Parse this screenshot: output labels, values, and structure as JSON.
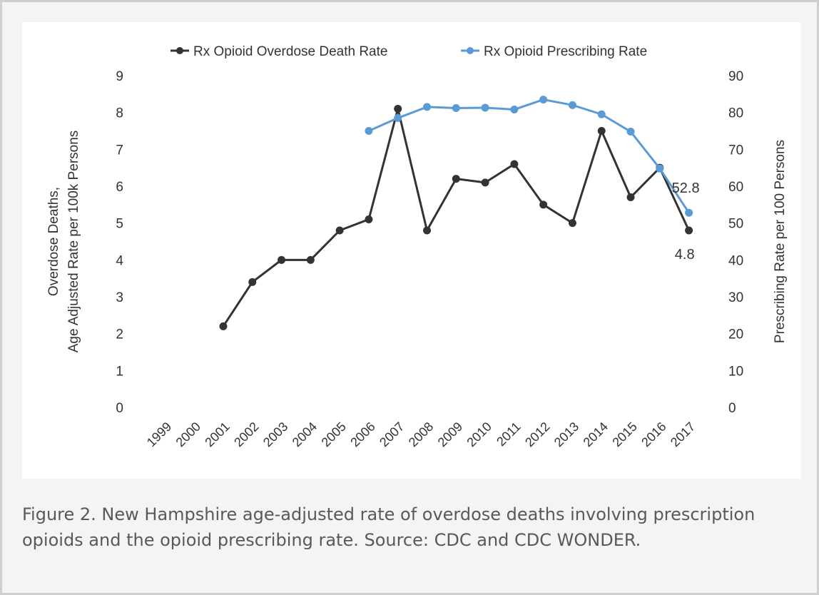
{
  "caption": "Figure 2. New Hampshire age-adjusted rate of overdose deaths involving prescription opioids and the opioid prescribing rate. Source: CDC and CDC WONDER.",
  "chart_data": {
    "type": "line",
    "categories": [
      "1999",
      "2000",
      "2001",
      "2002",
      "2003",
      "2004",
      "2005",
      "2006",
      "2007",
      "2008",
      "2009",
      "2010",
      "2011",
      "2012",
      "2013",
      "2014",
      "2015",
      "2016",
      "2017"
    ],
    "series": [
      {
        "name": "Rx Opioid Overdose Death Rate",
        "axis": "left",
        "color": "#333333",
        "values": [
          null,
          null,
          2.2,
          3.4,
          4.0,
          4.0,
          4.8,
          5.1,
          8.1,
          4.8,
          6.2,
          6.1,
          6.6,
          5.5,
          5.0,
          7.5,
          5.7,
          6.5,
          4.8
        ]
      },
      {
        "name": "Rx Opioid Prescribing Rate",
        "axis": "right",
        "color": "#5b9bd5",
        "values": [
          null,
          null,
          null,
          null,
          null,
          null,
          null,
          75,
          78.5,
          81.5,
          81.2,
          81.3,
          80.8,
          83.5,
          82,
          79.5,
          74.8,
          64.8,
          52.8
        ]
      }
    ],
    "y_left": {
      "label_lines": [
        "Overdose Deaths,",
        "Age Adjusted Rate per 100k Persons"
      ],
      "ylim": [
        0,
        9
      ],
      "ticks": [
        "0",
        "1",
        "2",
        "3",
        "4",
        "5",
        "6",
        "7",
        "8",
        "9"
      ]
    },
    "y_right": {
      "label": "Prescribing Rate per 100 Persons",
      "ylim": [
        0,
        90
      ],
      "ticks": [
        "0",
        "10",
        "20",
        "30",
        "40",
        "50",
        "60",
        "70",
        "80",
        "90"
      ]
    },
    "annotations": [
      {
        "text": "52.8",
        "series": 1,
        "index": 18
      },
      {
        "text": "4.8",
        "series": 0,
        "index": 18
      }
    ],
    "legend_position": "top",
    "grid": false
  }
}
